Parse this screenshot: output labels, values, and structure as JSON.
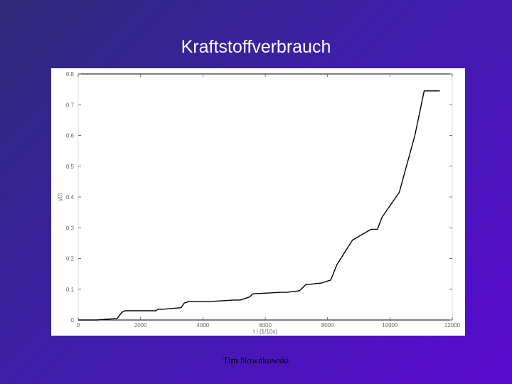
{
  "slide": {
    "title": "Kraftstoffverbrauch",
    "footer": "Tim Nowakowski"
  },
  "chart_data": {
    "type": "line",
    "title": "",
    "xlabel": "t / (1/10s)",
    "ylabel": "y(t)",
    "xlim": [
      0,
      12000
    ],
    "ylim": [
      0,
      0.8
    ],
    "x_ticks": [
      0,
      2000,
      4000,
      6000,
      8000,
      10000,
      12000
    ],
    "x_tick_labels": [
      "0",
      "2000",
      "4000",
      "6000",
      "8000",
      "10000",
      "12000"
    ],
    "y_ticks": [
      0,
      0.1,
      0.2,
      0.3,
      0.4,
      0.5,
      0.6,
      0.7,
      0.8
    ],
    "y_tick_labels": [
      "0",
      "0.1",
      "0.2",
      "0.3",
      "0.4",
      "0.5",
      "0.6",
      "0.7",
      "0.8"
    ],
    "grid": false,
    "series": [
      {
        "color": "#000000",
        "x": [
          0,
          600,
          1250,
          1400,
          1500,
          2500,
          2550,
          2700,
          3300,
          3400,
          3550,
          4200,
          5000,
          5200,
          5500,
          5600,
          6500,
          6700,
          7100,
          7300,
          7800,
          8100,
          8300,
          8800,
          9400,
          9600,
          9750,
          10300,
          10800,
          11100,
          11300,
          11600
        ],
        "y": [
          0,
          0,
          0.005,
          0.025,
          0.03,
          0.03,
          0.035,
          0.035,
          0.04,
          0.055,
          0.06,
          0.06,
          0.065,
          0.065,
          0.075,
          0.085,
          0.09,
          0.09,
          0.095,
          0.115,
          0.12,
          0.13,
          0.18,
          0.26,
          0.295,
          0.295,
          0.335,
          0.415,
          0.6,
          0.745,
          0.745,
          0.745
        ]
      }
    ]
  }
}
